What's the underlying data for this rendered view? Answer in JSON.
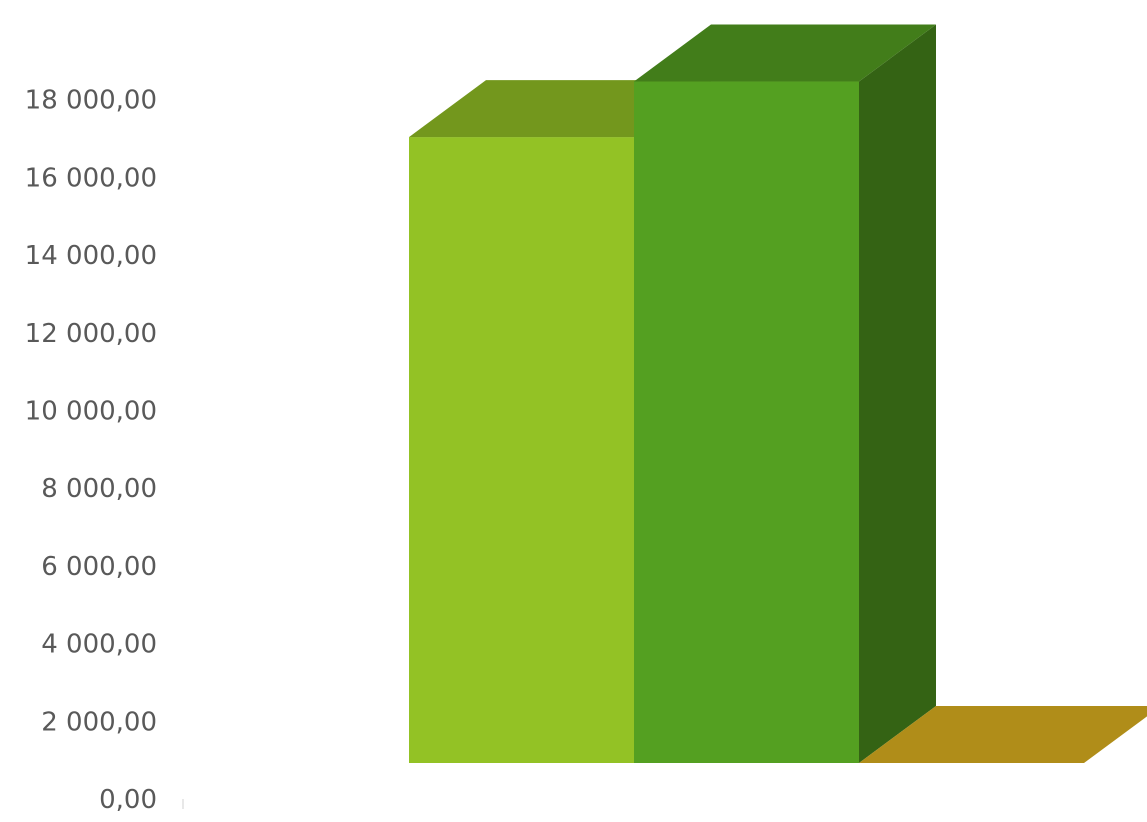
{
  "chart_data": {
    "type": "bar",
    "title": "",
    "xlabel": "",
    "ylabel": "",
    "ylim": [
      0,
      18000
    ],
    "yticks": [
      "0,00",
      "2 000,00",
      "4 000,00",
      "6 000,00",
      "8 000,00",
      "10 000,00",
      "12 000,00",
      "14 000,00",
      "16 000,00",
      "18 000,00"
    ],
    "grid": false,
    "legend": "none",
    "style": "3d-column",
    "series": [
      {
        "values": [
          16900
        ],
        "color": "#93c225"
      },
      {
        "values": [
          18400
        ],
        "color": "#54a021"
      },
      {
        "values": [
          0
        ],
        "color": "#b08d19"
      }
    ]
  }
}
